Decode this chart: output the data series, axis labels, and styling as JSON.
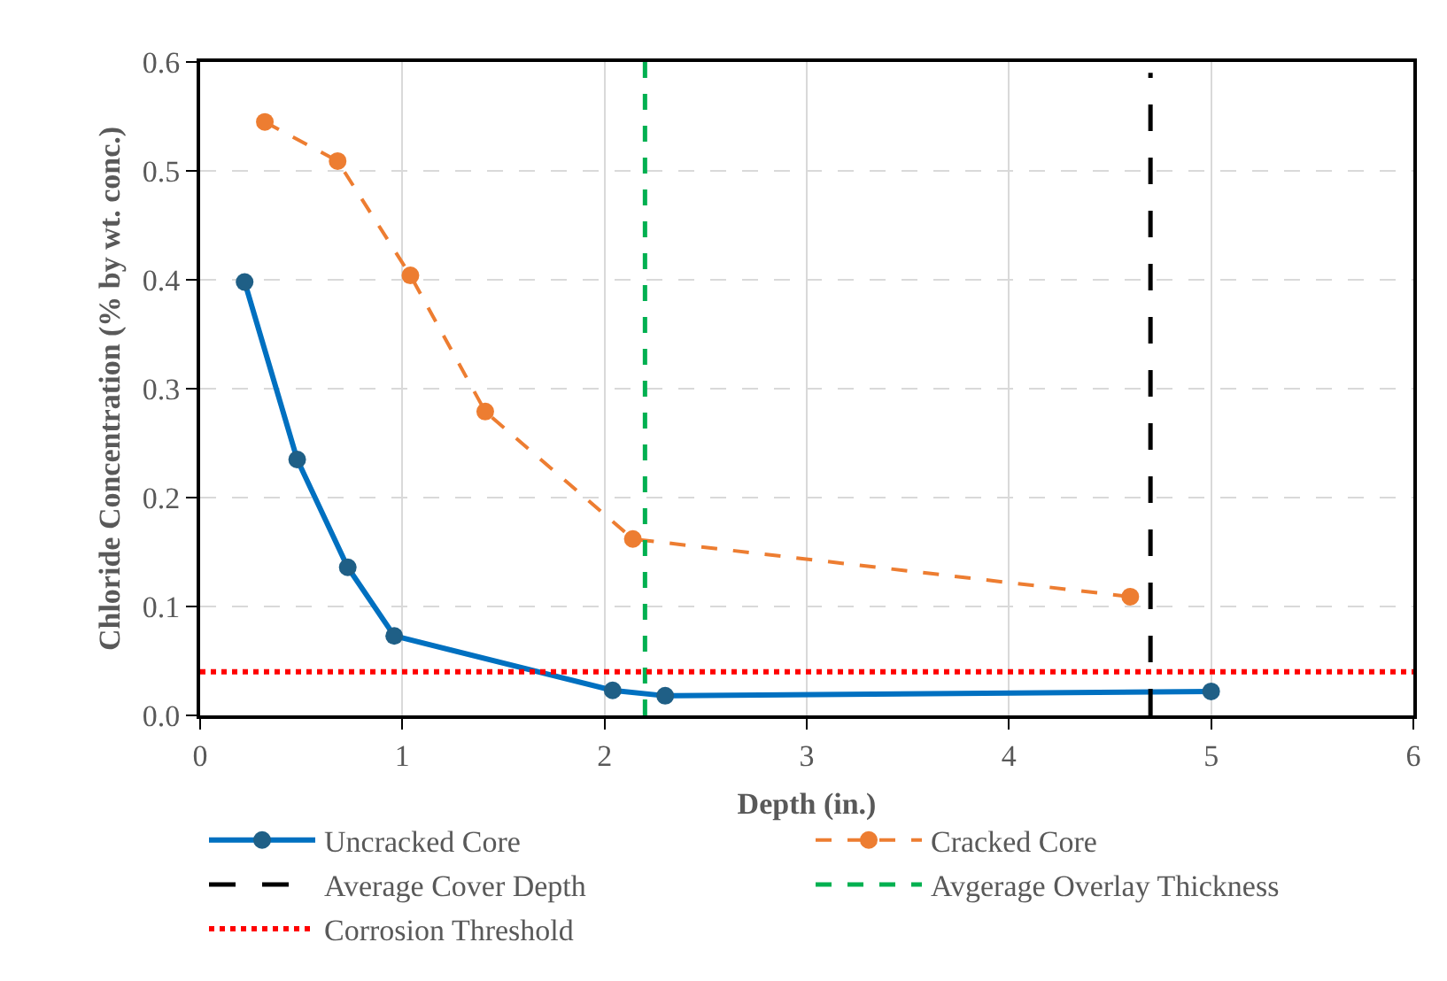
{
  "chart_data": {
    "type": "line",
    "xlabel": "Depth (in.)",
    "ylabel": "Chloride Concentration (% by wt. conc.)",
    "xlim": [
      0,
      6
    ],
    "xticks": [
      0,
      1,
      2,
      3,
      4,
      5,
      6
    ],
    "ylim": [
      0,
      0.6
    ],
    "yticks": [
      {
        "value": 0,
        "label": "0.0"
      },
      {
        "value": 0.1,
        "label": "0.1"
      },
      {
        "value": 0.2,
        "label": "0.2"
      },
      {
        "value": 0.3,
        "label": "0.3"
      },
      {
        "value": 0.4,
        "label": "0.4"
      },
      {
        "value": 0.5,
        "label": "0.5"
      },
      {
        "value": 0.6,
        "label": "0.6"
      }
    ],
    "grid": true,
    "legend": "bottom",
    "series": [
      {
        "name": "Uncracked Core",
        "color": "#0070c0",
        "marker": "circle",
        "line_style": "solid",
        "x": [
          0.22,
          0.48,
          0.73,
          0.96,
          2.04,
          2.3,
          5.0
        ],
        "values": [
          0.398,
          0.235,
          0.136,
          0.073,
          0.023,
          0.018,
          0.022
        ]
      },
      {
        "name": "Cracked Core",
        "color": "#ed7d31",
        "marker": "circle",
        "line_style": "dashed",
        "x": [
          0.32,
          0.68,
          1.04,
          1.41,
          2.14,
          4.6
        ],
        "values": [
          0.545,
          0.509,
          0.404,
          0.279,
          0.162,
          0.109
        ]
      },
      {
        "name": "Average Cover Depth",
        "color": "#000000",
        "marker": "none",
        "line_style": "longdash",
        "x": [
          4.7,
          4.7
        ],
        "values": [
          0,
          0.59
        ]
      },
      {
        "name": "Avgerage Overlay Thickness",
        "color": "#00b050",
        "marker": "none",
        "line_style": "dashed",
        "x": [
          2.2,
          2.2
        ],
        "values": [
          0,
          0.6
        ]
      },
      {
        "name": "Corrosion Threshold",
        "color": "#ff0000",
        "marker": "none",
        "line_style": "dotted",
        "x": [
          0,
          6
        ],
        "values": [
          0.04,
          0.04
        ]
      }
    ]
  }
}
